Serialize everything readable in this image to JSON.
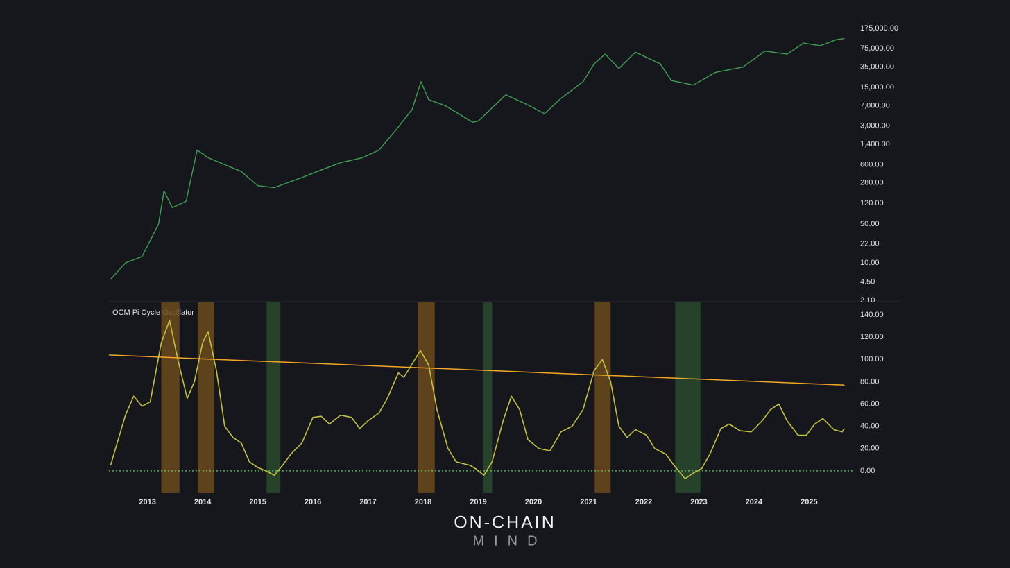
{
  "chart_data": [
    {
      "type": "line",
      "log_scale": true,
      "color": "#3fa052",
      "x": [
        2012.33,
        2012.6,
        2012.9,
        2013.2,
        2013.3,
        2013.45,
        2013.7,
        2013.9,
        2014.1,
        2014.4,
        2014.7,
        2015.0,
        2015.3,
        2015.8,
        2016.0,
        2016.5,
        2016.9,
        2017.2,
        2017.5,
        2017.8,
        2017.96,
        2018.1,
        2018.4,
        2018.9,
        2019.0,
        2019.5,
        2019.9,
        2020.2,
        2020.5,
        2020.9,
        2021.1,
        2021.3,
        2021.55,
        2021.85,
        2022.3,
        2022.5,
        2022.9,
        2023.3,
        2023.8,
        2024.2,
        2024.6,
        2024.9,
        2025.2,
        2025.5,
        2025.64
      ],
      "values": [
        5,
        10,
        13,
        50,
        200,
        100,
        130,
        1100,
        800,
        600,
        450,
        250,
        230,
        350,
        420,
        650,
        800,
        1100,
        2500,
        6000,
        19000,
        9000,
        7000,
        3500,
        3700,
        11000,
        7200,
        5000,
        9500,
        19000,
        40000,
        60000,
        33000,
        65000,
        40000,
        20000,
        16500,
        28000,
        35000,
        68000,
        60000,
        95000,
        85000,
        110000,
        115000
      ],
      "xlim": [
        2012.3,
        2025.8
      ],
      "ylim": [
        2.1,
        175000
      ],
      "yticks": [
        {
          "value": 175000,
          "label": "175,000.00"
        },
        {
          "value": 75000,
          "label": "75,000.00"
        },
        {
          "value": 35000,
          "label": "35,000.00"
        },
        {
          "value": 15000,
          "label": "15,000.00"
        },
        {
          "value": 7000,
          "label": "7,000.00"
        },
        {
          "value": 3000,
          "label": "3,000.00"
        },
        {
          "value": 1400,
          "label": "1,400.00"
        },
        {
          "value": 600,
          "label": "600.00"
        },
        {
          "value": 280,
          "label": "280.00"
        },
        {
          "value": 120,
          "label": "120.00"
        },
        {
          "value": 50,
          "label": "50.00"
        },
        {
          "value": 22,
          "label": "22.00"
        },
        {
          "value": 10,
          "label": "10.00"
        },
        {
          "value": 4.5,
          "label": "4.50"
        },
        {
          "value": 2.1,
          "label": "2.10"
        }
      ]
    },
    {
      "type": "line",
      "title": "OCM Pi Cycle Oscillator",
      "color": "#c3c13f",
      "x": [
        2012.33,
        2012.45,
        2012.6,
        2012.75,
        2012.9,
        2013.05,
        2013.25,
        2013.4,
        2013.55,
        2013.72,
        2013.85,
        2014.0,
        2014.1,
        2014.25,
        2014.4,
        2014.55,
        2014.7,
        2014.85,
        2015.0,
        2015.15,
        2015.3,
        2015.45,
        2015.6,
        2015.8,
        2016.0,
        2016.15,
        2016.3,
        2016.5,
        2016.7,
        2016.85,
        2017.0,
        2017.2,
        2017.35,
        2017.55,
        2017.65,
        2017.75,
        2017.95,
        2018.1,
        2018.25,
        2018.45,
        2018.6,
        2018.85,
        2018.95,
        2019.1,
        2019.25,
        2019.45,
        2019.6,
        2019.75,
        2019.9,
        2020.1,
        2020.3,
        2020.5,
        2020.7,
        2020.9,
        2021.1,
        2021.25,
        2021.4,
        2021.55,
        2021.7,
        2021.85,
        2022.05,
        2022.2,
        2022.4,
        2022.55,
        2022.75,
        2022.9,
        2023.05,
        2023.2,
        2023.4,
        2023.55,
        2023.75,
        2023.95,
        2024.15,
        2024.3,
        2024.45,
        2024.6,
        2024.8,
        2024.95,
        2025.1,
        2025.25,
        2025.45,
        2025.6,
        2025.64
      ],
      "values": [
        5,
        25,
        50,
        67,
        58,
        62,
        115,
        135,
        100,
        65,
        80,
        115,
        125,
        90,
        40,
        30,
        25,
        8,
        3,
        0,
        -4,
        5,
        15,
        25,
        48,
        49,
        42,
        50,
        48,
        38,
        45,
        52,
        65,
        88,
        84,
        92,
        108,
        95,
        55,
        20,
        8,
        5,
        2,
        -4,
        8,
        45,
        67,
        55,
        28,
        20,
        18,
        35,
        40,
        55,
        90,
        100,
        80,
        40,
        30,
        37,
        32,
        20,
        15,
        5,
        -7,
        -2,
        2,
        15,
        38,
        42,
        36,
        35,
        45,
        55,
        60,
        45,
        32,
        32,
        42,
        47,
        37,
        35,
        38
      ],
      "threshold": {
        "x": [
          2012.3,
          2025.64
        ],
        "values": [
          104,
          77
        ],
        "color": "#f5a623"
      },
      "zero_line": {
        "value": 0,
        "color": "#6ccf6a"
      },
      "bands": [
        {
          "x0": 2013.25,
          "x1": 2013.58,
          "color": "#6b4a1c"
        },
        {
          "x0": 2013.91,
          "x1": 2014.21,
          "color": "#6b4a1c"
        },
        {
          "x0": 2015.16,
          "x1": 2015.41,
          "color": "#2a4a2e"
        },
        {
          "x0": 2017.9,
          "x1": 2018.21,
          "color": "#6b4a1c"
        },
        {
          "x0": 2019.08,
          "x1": 2019.25,
          "color": "#2a4a2e"
        },
        {
          "x0": 2021.11,
          "x1": 2021.4,
          "color": "#6b4a1c"
        },
        {
          "x0": 2022.57,
          "x1": 2023.03,
          "color": "#2a4a2e"
        }
      ],
      "xlim": [
        2012.3,
        2025.8
      ],
      "xticks": [
        2013,
        2014,
        2015,
        2016,
        2017,
        2018,
        2019,
        2020,
        2021,
        2022,
        2023,
        2024,
        2025
      ],
      "ylim": [
        -20,
        150
      ],
      "yticks": [
        {
          "value": 140,
          "label": "140.00"
        },
        {
          "value": 120,
          "label": "120.00"
        },
        {
          "value": 100,
          "label": "100.00"
        },
        {
          "value": 80,
          "label": "80.00"
        },
        {
          "value": 60,
          "label": "60.00"
        },
        {
          "value": 40,
          "label": "40.00"
        },
        {
          "value": 20,
          "label": "20.00"
        },
        {
          "value": 0,
          "label": "0.00"
        }
      ]
    }
  ],
  "logo": {
    "line1": "ON-CHAIN",
    "line2": "MIND"
  }
}
